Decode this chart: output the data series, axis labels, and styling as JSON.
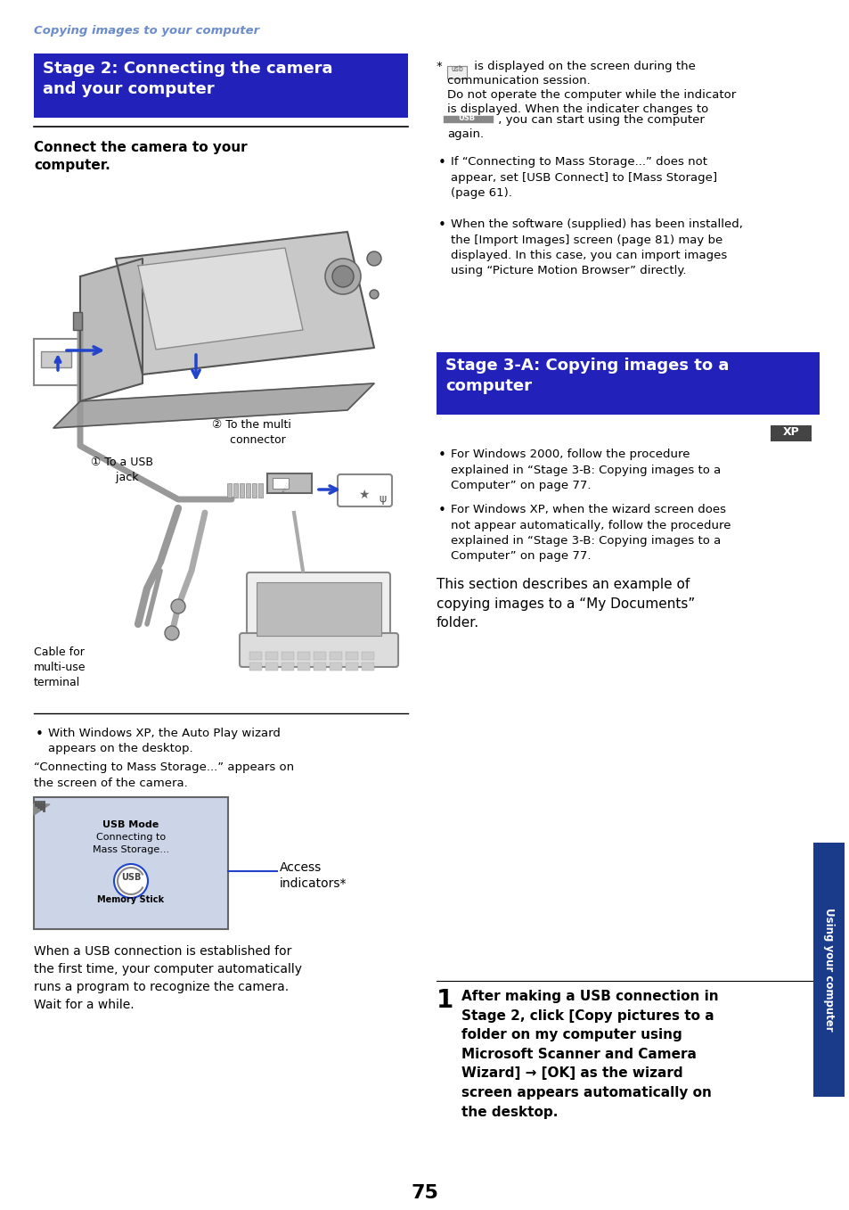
{
  "page_bg": "#ffffff",
  "header_text": "Copying images to your computer",
  "header_color": "#6b8ccc",
  "stage2_title": "Stage 2: Connecting the camera\nand your computer",
  "stage2_bg": "#2222bb",
  "stage2_text_color": "#ffffff",
  "stage3_title": "Stage 3-A: Copying images to a\ncomputer",
  "stage3_bg": "#2222bb",
  "stage3_text_color": "#ffffff",
  "connect_heading": "Connect the camera to your\ncomputer.",
  "right_note": "* (usb) is displayed on the screen during the\ncommunication session.\nDo not operate the computer while the indicator\nis displayed. When the indicater changes to\n—USB— , you can start using the computer\nagain.",
  "right_bullet1": "If “Connecting to Mass Storage...” does not\nappear, set [USB Connect] to [Mass Storage]\n(page 61).",
  "right_bullet2": "When the software (supplied) has been installed,\nthe [Import Images] screen (page 81) may be\ndisplayed. In this case, you can import images\nusing “Picture Motion Browser” directly.",
  "left_bullet1": "With Windows XP, the Auto Play wizard\nappears on the desktop.",
  "connecting_text": "“Connecting to Mass Storage...” appears on\nthe screen of the camera.",
  "access_text": "Access\nindicators*",
  "when_usb_text": "When a USB connection is established for\nthe first time, your computer automatically\nruns a program to recognize the camera.\nWait for a while.",
  "stage3_bullet1": "For Windows 2000, follow the procedure\nexplained in “Stage 3-B: Copying images to a\nComputer” on page 77.",
  "stage3_bullet2": "For Windows XP, when the wizard screen does\nnot appear automatically, follow the procedure\nexplained in “Stage 3-B: Copying images to a\nComputer” on page 77.",
  "section_text": "This section describes an example of\ncopying images to a “My Documents”\nfolder.",
  "step1_num": "1",
  "step1_text": "After making a USB connection in\nStage 2, click [Copy pictures to a\nfolder on my computer using\nMicrosoft Scanner and Camera\nWizard] → [OK] as the wizard\nscreen appears automatically on\nthe desktop.",
  "sidebar_text": "Using your computer",
  "sidebar_color": "#1a3a8a",
  "page_number": "75",
  "xp_label": "XP",
  "xp_bg": "#444444",
  "xp_text_color": "#ffffff",
  "cable_label": "Cable for\nmulti-use\nterminal",
  "usb_jack_label": "① To a USB\n       jack",
  "multi_conn_label": "② To the multi\n     connector",
  "screen_bg": "#ccd4e8",
  "screen_border": "#666666"
}
